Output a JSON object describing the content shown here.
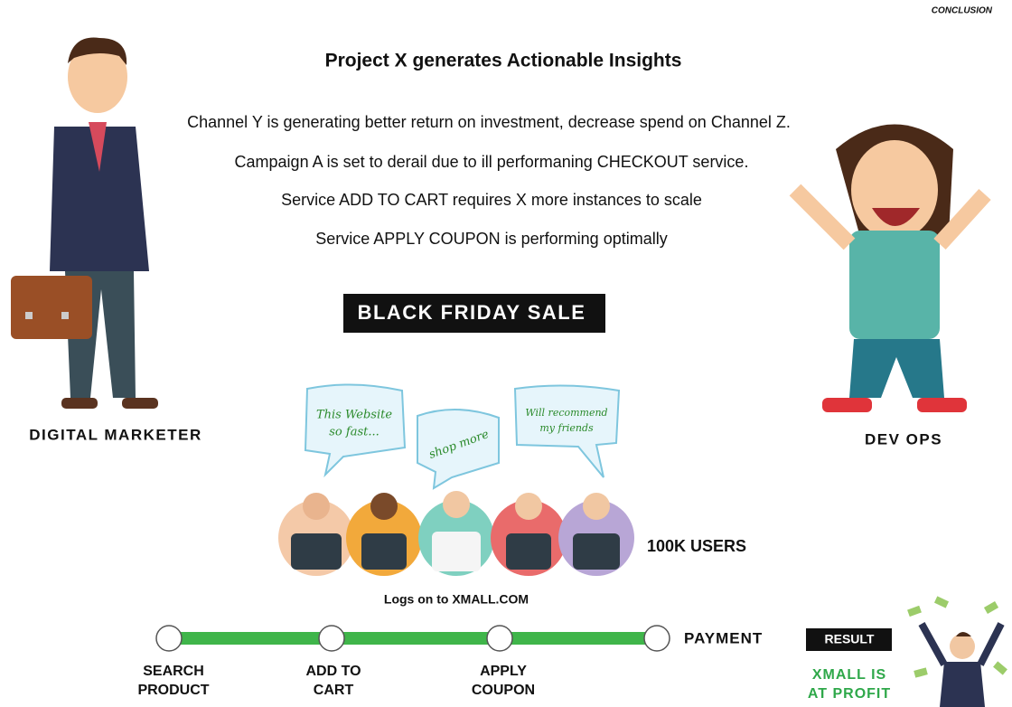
{
  "header": {
    "label": "CONCLUSION"
  },
  "title": "Project X generates Actionable Insights",
  "insights": [
    "Channel Y is generating better return on investment, decrease spend on Channel Z.",
    "Campaign A is set to derail due to ill performaning CHECKOUT service.",
    "Service ADD TO CART requires X more instances to scale",
    "Service APPLY COUPON is performing optimally"
  ],
  "banner": "BLACK FRIDAY SALE",
  "personas": {
    "left": "DIGITAL MARKETER",
    "right": "DEV OPS"
  },
  "bubbles": [
    [
      "This Website",
      "so fast..."
    ],
    [
      "shop more"
    ],
    [
      "Will recommend",
      "my friends"
    ]
  ],
  "users_label": "100K USERS",
  "logon": "Logs on to XMALL.COM",
  "flow": [
    [
      "SEARCH",
      "PRODUCT"
    ],
    [
      "ADD TO",
      "CART"
    ],
    [
      "APPLY",
      "COUPON"
    ],
    [
      "PAYMENT"
    ]
  ],
  "result": {
    "badge": "RESULT",
    "text": [
      "XMALL IS",
      "AT PROFIT"
    ]
  }
}
